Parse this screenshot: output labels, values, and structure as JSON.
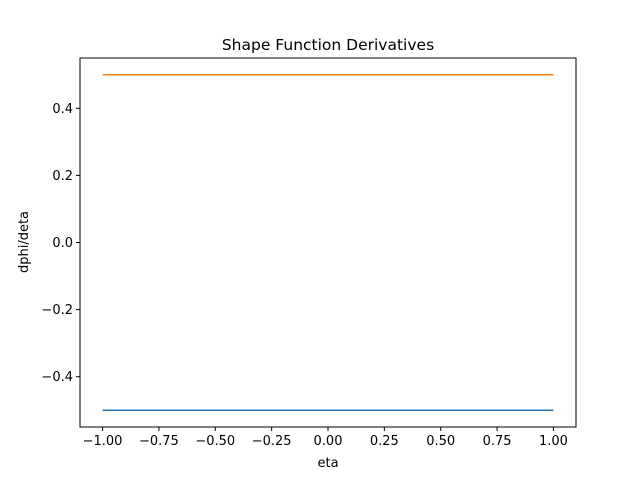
{
  "chart_data": {
    "type": "line",
    "title": "Shape Function Derivatives",
    "xlabel": "eta",
    "ylabel": "dphi/deta",
    "xlim": [
      -1.1,
      1.1
    ],
    "ylim": [
      -0.55,
      0.55
    ],
    "xticks": [
      -1.0,
      -0.75,
      -0.5,
      -0.25,
      0.0,
      0.25,
      0.5,
      0.75,
      1.0
    ],
    "xtick_labels": [
      "−1.00",
      "−0.75",
      "−0.50",
      "−0.25",
      "0.00",
      "0.25",
      "0.50",
      "0.75",
      "1.00"
    ],
    "yticks": [
      -0.4,
      -0.2,
      0.0,
      0.2,
      0.4
    ],
    "ytick_labels": [
      "−0.4",
      "−0.2",
      "0.0",
      "0.2",
      "0.4"
    ],
    "grid": false,
    "legend": "none",
    "series": [
      {
        "color": "#1f77b4",
        "x": [
          -1.0,
          1.0
        ],
        "y": [
          -0.5,
          -0.5
        ]
      },
      {
        "color": "#ff7f0e",
        "x": [
          -1.0,
          1.0
        ],
        "y": [
          0.5,
          0.5
        ]
      }
    ]
  }
}
